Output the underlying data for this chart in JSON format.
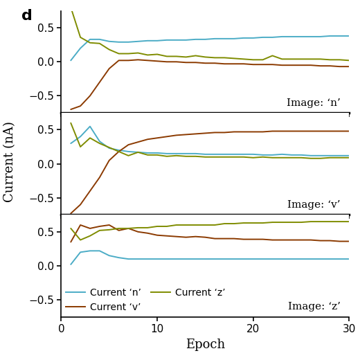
{
  "title_label": "d",
  "xlabel": "Epoch",
  "ylabel": "Current (nA)",
  "color_n": "#4bacc6",
  "color_v": "#8b3a00",
  "color_z": "#7f8c00",
  "ylim": [
    -0.75,
    0.75
  ],
  "xlim": [
    0,
    30
  ],
  "xticks": [
    0,
    10,
    20,
    30
  ],
  "yticks": [
    -0.5,
    0.0,
    0.5
  ],
  "panel_labels": [
    "Image: ‘n’",
    "Image: ‘v’",
    "Image: ‘z’"
  ],
  "epochs": [
    1,
    2,
    3,
    4,
    5,
    6,
    7,
    8,
    9,
    10,
    11,
    12,
    13,
    14,
    15,
    16,
    17,
    18,
    19,
    20,
    21,
    22,
    23,
    24,
    25,
    26,
    27,
    28,
    29,
    30
  ],
  "panel0_n": [
    0.02,
    0.2,
    0.33,
    0.33,
    0.3,
    0.29,
    0.29,
    0.3,
    0.31,
    0.31,
    0.32,
    0.32,
    0.32,
    0.33,
    0.33,
    0.34,
    0.34,
    0.34,
    0.35,
    0.35,
    0.36,
    0.36,
    0.37,
    0.37,
    0.37,
    0.37,
    0.37,
    0.38,
    0.38,
    0.38
  ],
  "panel0_v": [
    -0.7,
    -0.65,
    -0.5,
    -0.3,
    -0.1,
    0.02,
    0.02,
    0.03,
    0.02,
    0.01,
    0.0,
    0.0,
    -0.01,
    -0.01,
    -0.02,
    -0.02,
    -0.03,
    -0.03,
    -0.03,
    -0.04,
    -0.04,
    -0.04,
    -0.05,
    -0.05,
    -0.05,
    -0.05,
    -0.06,
    -0.06,
    -0.07,
    -0.07
  ],
  "panel0_z": [
    0.8,
    0.36,
    0.28,
    0.27,
    0.18,
    0.12,
    0.12,
    0.13,
    0.1,
    0.11,
    0.08,
    0.08,
    0.07,
    0.09,
    0.07,
    0.06,
    0.06,
    0.05,
    0.04,
    0.03,
    0.03,
    0.09,
    0.04,
    0.04,
    0.04,
    0.04,
    0.04,
    0.03,
    0.03,
    0.02
  ],
  "panel1_n": [
    0.3,
    0.4,
    0.55,
    0.33,
    0.23,
    0.2,
    0.18,
    0.17,
    0.16,
    0.16,
    0.15,
    0.15,
    0.15,
    0.15,
    0.14,
    0.14,
    0.14,
    0.14,
    0.14,
    0.14,
    0.13,
    0.13,
    0.14,
    0.13,
    0.13,
    0.12,
    0.12,
    0.12,
    0.12,
    0.12
  ],
  "panel1_v": [
    -0.73,
    -0.6,
    -0.4,
    -0.2,
    0.05,
    0.18,
    0.28,
    0.32,
    0.36,
    0.38,
    0.4,
    0.42,
    0.43,
    0.44,
    0.45,
    0.46,
    0.46,
    0.47,
    0.47,
    0.47,
    0.47,
    0.48,
    0.48,
    0.48,
    0.48,
    0.48,
    0.48,
    0.48,
    0.48,
    0.48
  ],
  "panel1_z": [
    0.6,
    0.25,
    0.38,
    0.3,
    0.24,
    0.18,
    0.12,
    0.17,
    0.13,
    0.13,
    0.11,
    0.12,
    0.11,
    0.11,
    0.1,
    0.1,
    0.1,
    0.1,
    0.1,
    0.09,
    0.1,
    0.09,
    0.09,
    0.09,
    0.09,
    0.08,
    0.08,
    0.09,
    0.09,
    0.09
  ],
  "panel2_n": [
    0.02,
    0.2,
    0.22,
    0.22,
    0.15,
    0.12,
    0.1,
    0.1,
    0.1,
    0.1,
    0.1,
    0.1,
    0.1,
    0.1,
    0.1,
    0.1,
    0.1,
    0.1,
    0.1,
    0.1,
    0.1,
    0.1,
    0.1,
    0.1,
    0.1,
    0.1,
    0.1,
    0.1,
    0.1,
    0.1
  ],
  "panel2_v": [
    0.35,
    0.6,
    0.55,
    0.58,
    0.6,
    0.52,
    0.55,
    0.5,
    0.48,
    0.45,
    0.44,
    0.43,
    0.42,
    0.43,
    0.42,
    0.4,
    0.4,
    0.4,
    0.39,
    0.39,
    0.39,
    0.38,
    0.38,
    0.38,
    0.38,
    0.38,
    0.37,
    0.37,
    0.36,
    0.36
  ],
  "panel2_z": [
    0.55,
    0.38,
    0.44,
    0.52,
    0.53,
    0.55,
    0.55,
    0.56,
    0.56,
    0.58,
    0.58,
    0.6,
    0.6,
    0.6,
    0.6,
    0.6,
    0.62,
    0.62,
    0.63,
    0.63,
    0.63,
    0.64,
    0.64,
    0.64,
    0.64,
    0.65,
    0.65,
    0.65,
    0.65,
    0.65
  ],
  "legend_labels": [
    "Current ‘n’",
    "Current ‘v’",
    "Current ‘z’"
  ],
  "background_color": "#ffffff",
  "linewidth": 1.4,
  "tick_fontsize": 11,
  "label_fontsize": 13,
  "panel_label_fontsize": 11
}
